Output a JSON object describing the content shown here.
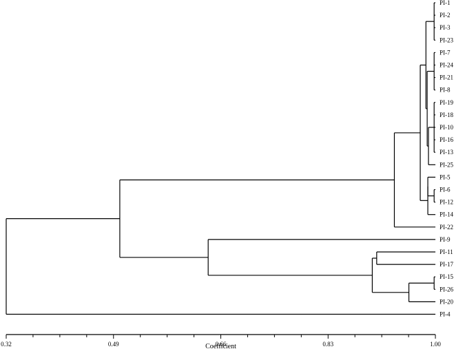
{
  "chart_data": {
    "type": "dendrogram",
    "orientation": "horizontal",
    "xlabel": "Coefficient",
    "xlim": [
      0.32,
      1.0
    ],
    "ticks": [
      "0.32",
      "0.49",
      "0.66",
      "0.83",
      "1.00"
    ],
    "tick_values": [
      0.32,
      0.49,
      0.66,
      0.83,
      1.0
    ],
    "minor_ticks_per_interval": 4,
    "leaves": [
      "PI-1",
      "PI-2",
      "PI-3",
      "PI-23",
      "PI-7",
      "PI-24",
      "PI-21",
      "PI-8",
      "PI-19",
      "PI-18",
      "PI-10",
      "PI-16",
      "PI-13",
      "PI-25",
      "PI-5",
      "PI-6",
      "PI-12",
      "PI-14",
      "PI-22",
      "PI-9",
      "PI-11",
      "PI-17",
      "PI-15",
      "PI-26",
      "PI-20",
      "PI-4"
    ],
    "merges": [
      {
        "id": "c1",
        "children": [
          "PI-1",
          "PI-2",
          "PI-3",
          "PI-23"
        ],
        "height": 0.998
      },
      {
        "id": "c2",
        "children": [
          "PI-7",
          "PI-24",
          "PI-21",
          "PI-8"
        ],
        "height": 0.998
      },
      {
        "id": "c3",
        "children": [
          "PI-19",
          "PI-18",
          "PI-10",
          "PI-16",
          "PI-13"
        ],
        "height": 0.998
      },
      {
        "id": "c4",
        "children": [
          "c3",
          "PI-25"
        ],
        "height": 0.989
      },
      {
        "id": "c5",
        "children": [
          "c2",
          "c4"
        ],
        "height": 0.987
      },
      {
        "id": "c6",
        "children": [
          "c1",
          "c5"
        ],
        "height": 0.985
      },
      {
        "id": "c7",
        "children": [
          "PI-6",
          "PI-12"
        ],
        "height": 0.998
      },
      {
        "id": "c8",
        "children": [
          "PI-5",
          "c7"
        ],
        "height": 0.988
      },
      {
        "id": "c9",
        "children": [
          "c8",
          "PI-14"
        ],
        "height": 0.988
      },
      {
        "id": "c10",
        "children": [
          "c6",
          "c9"
        ],
        "height": 0.976
      },
      {
        "id": "c11",
        "children": [
          "c10",
          "PI-22"
        ],
        "height": 0.935
      },
      {
        "id": "c12",
        "children": [
          "PI-11",
          "PI-17"
        ],
        "height": 0.907
      },
      {
        "id": "c13",
        "children": [
          "PI-26",
          "PI-15"
        ],
        "height": 0.998
      },
      {
        "id": "c14",
        "children": [
          "c13",
          "PI-20"
        ],
        "height": 0.958
      },
      {
        "id": "c15",
        "children": [
          "c12",
          "c14"
        ],
        "height": 0.9
      },
      {
        "id": "c16",
        "children": [
          "PI-9",
          "c15"
        ],
        "height": 0.64
      },
      {
        "id": "c17",
        "children": [
          "c11",
          "c16"
        ],
        "height": 0.5
      },
      {
        "id": "c18",
        "children": [
          "c17",
          "PI-4"
        ],
        "height": 0.32
      }
    ]
  }
}
